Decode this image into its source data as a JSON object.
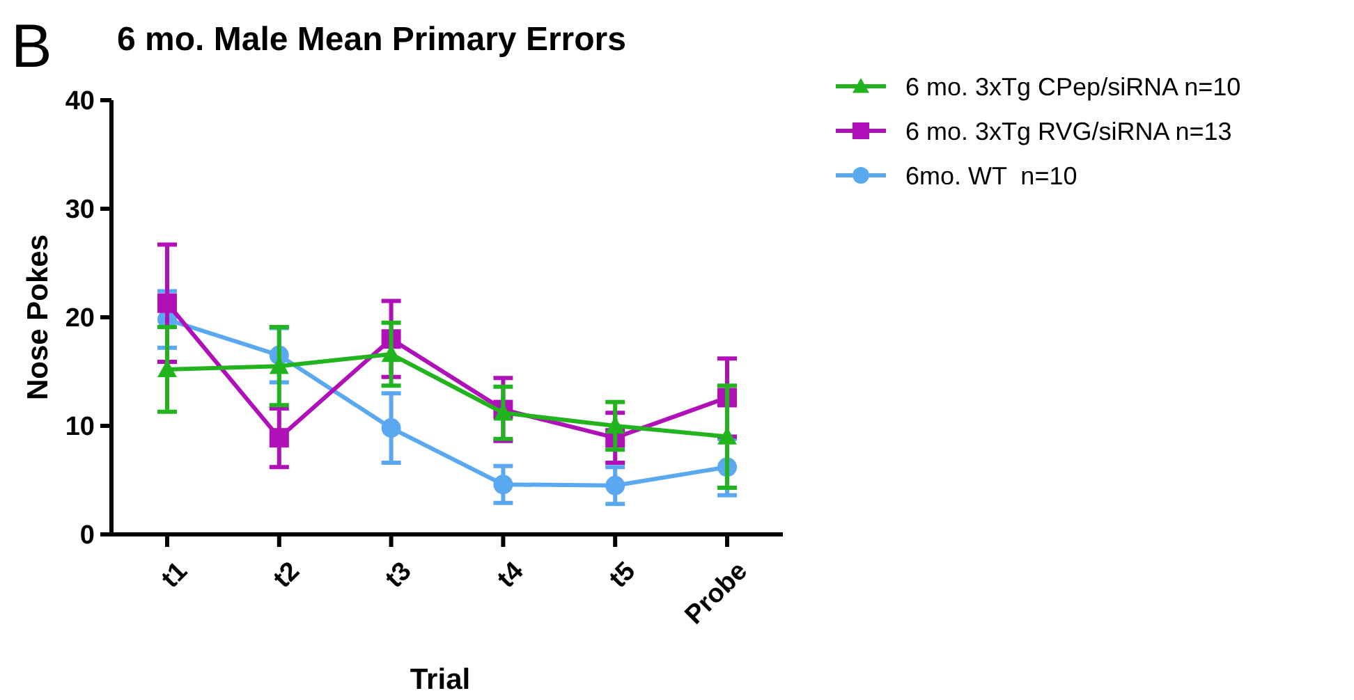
{
  "chart_data": {
    "type": "line",
    "title": "6 mo. Male Mean Primary Errors",
    "xlabel": "Trial",
    "ylabel": "Nose Pokes",
    "annotations": [
      "B"
    ],
    "categories": [
      "t1",
      "t2",
      "t3",
      "t4",
      "t5",
      "Probe"
    ],
    "ylim": [
      0,
      40
    ],
    "yticks": [
      0,
      10,
      20,
      30,
      40
    ],
    "grid": false,
    "legend": "right",
    "series": [
      {
        "name": "6 mo. 3xTg CPep/siRNA n=10",
        "color": "#22b41e",
        "marker": "triangle",
        "values": [
          15.2,
          15.5,
          16.6,
          11.2,
          10.0,
          9.0
        ],
        "errors": [
          3.9,
          3.6,
          2.9,
          2.4,
          2.2,
          4.7
        ]
      },
      {
        "name": "6 mo. 3xTg RVG/siRNA n=13",
        "color": "#b010b8",
        "marker": "square",
        "values": [
          21.3,
          8.9,
          18.0,
          11.5,
          8.9,
          12.6
        ],
        "errors": [
          5.4,
          2.7,
          3.5,
          2.9,
          2.3,
          3.6
        ]
      },
      {
        "name": "6mo. WT  n=10",
        "color": "#5aa8f0",
        "marker": "circle",
        "values": [
          19.8,
          16.5,
          9.8,
          4.6,
          4.5,
          6.2
        ],
        "errors": [
          2.6,
          2.5,
          3.2,
          1.7,
          1.7,
          2.6
        ]
      }
    ]
  }
}
